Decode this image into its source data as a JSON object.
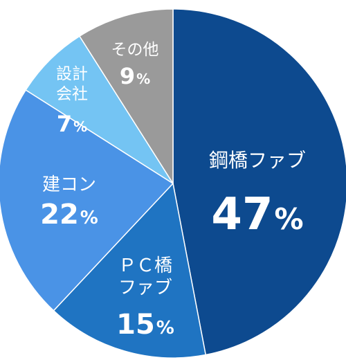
{
  "chart_data": {
    "type": "pie",
    "slices": [
      {
        "label_lines": [
          "鋼橋ファブ"
        ],
        "value": 47,
        "value_text": "47",
        "unit": "%",
        "color": "#0d4a8f"
      },
      {
        "label_lines": [
          "ＰＣ橋",
          "ファブ"
        ],
        "value": 15,
        "value_text": "15",
        "unit": "%",
        "color": "#1f74c2"
      },
      {
        "label_lines": [
          "建コン"
        ],
        "value": 22,
        "value_text": "22",
        "unit": "%",
        "color": "#4a93e6"
      },
      {
        "label_lines": [
          "設計",
          "会社"
        ],
        "value": 7,
        "value_text": "7",
        "unit": "%",
        "color": "#74c4f3"
      },
      {
        "label_lines": [
          "その他"
        ],
        "value": 9,
        "value_text": "9",
        "unit": "%",
        "color": "#9a9a9a"
      }
    ]
  }
}
